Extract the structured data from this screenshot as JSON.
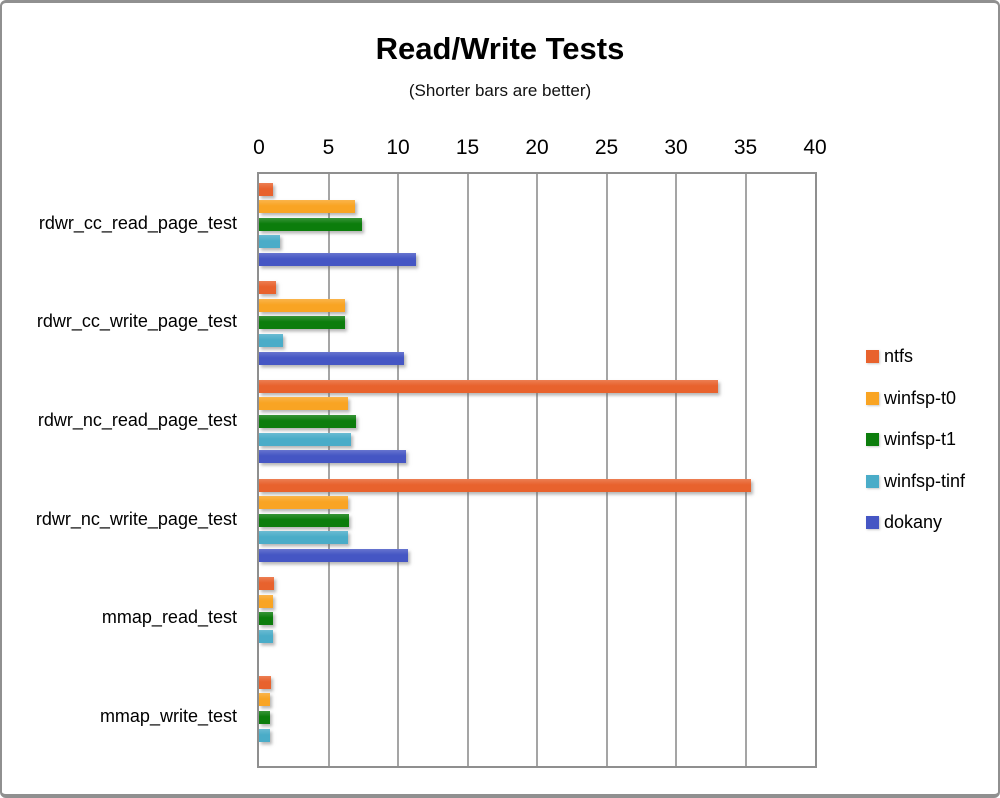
{
  "chart_data": {
    "type": "bar",
    "orientation": "horizontal",
    "title": "Read/Write Tests",
    "subtitle": "(Shorter bars are better)",
    "xlabel": "",
    "ylabel": "",
    "xlim": [
      0,
      40
    ],
    "xtick_step": 5,
    "grid": true,
    "legend_position": "right",
    "categories": [
      "rdwr_cc_read_page_test",
      "rdwr_cc_write_page_test",
      "rdwr_nc_read_page_test",
      "rdwr_nc_write_page_test",
      "mmap_read_test",
      "mmap_write_test"
    ],
    "series": [
      {
        "name": "ntfs",
        "color": "#E8622D",
        "values": [
          1.0,
          1.2,
          33.0,
          35.4,
          1.1,
          0.85
        ]
      },
      {
        "name": "winfsp-t0",
        "color": "#F9A423",
        "values": [
          6.9,
          6.2,
          6.4,
          6.4,
          1.0,
          0.8
        ]
      },
      {
        "name": "winfsp-t1",
        "color": "#0C7D0C",
        "values": [
          7.4,
          6.2,
          7.0,
          6.5,
          1.0,
          0.8
        ]
      },
      {
        "name": "winfsp-tinf",
        "color": "#4AACC8",
        "values": [
          1.5,
          1.7,
          6.6,
          6.4,
          1.0,
          0.8
        ]
      },
      {
        "name": "dokany",
        "color": "#4556C4",
        "values": [
          11.3,
          10.4,
          10.6,
          10.7,
          0,
          0
        ]
      }
    ]
  }
}
